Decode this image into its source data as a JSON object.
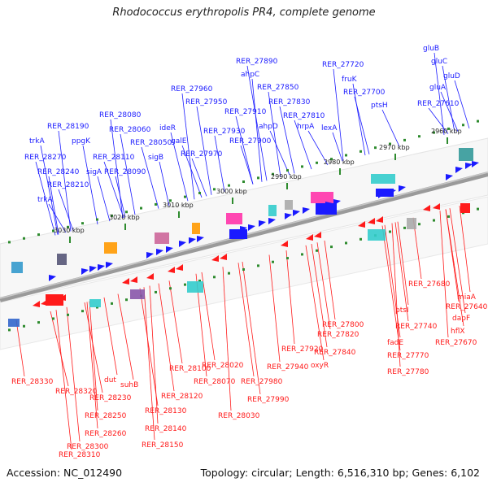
{
  "title": "Rhodococcus erythropolis PR4, complete genome",
  "footer": {
    "accession": "Accession: NC_012490",
    "topology": "Topology: circular; Length: 6,516,310 bp; Genes: 6,102"
  },
  "colors": {
    "forward": "#1a1aff",
    "reverse": "#ff1a1a",
    "backbone": "#777777",
    "scale": "#2e8b2e"
  },
  "scale_ticks": [
    "2960 kbp",
    "2970 kbp",
    "2980 kbp",
    "2990 kbp",
    "3000 kbp",
    "3010 kbp",
    "3020 kbp",
    "3030 kbp"
  ],
  "forward_labels": [
    "gluB",
    "gluC",
    "gluD",
    "gluA",
    "RER_27610",
    "RER_27720",
    "fruK",
    "RER_27700",
    "ptsH",
    "RER_27890",
    "ahpC",
    "RER_27850",
    "RER_27830",
    "RER_27810",
    "hrpA",
    "lexA",
    "RER_27960",
    "RER_27950",
    "RER_27910",
    "ahpD",
    "RER_27930",
    "RER_27900",
    "RER_27970",
    "ideR",
    "galE",
    "sigB",
    "RER_28080",
    "RER_28060",
    "RER_28050",
    "RER_28110",
    "RER_28090",
    "RER_28190",
    "ppgK",
    "trkA",
    "RER_28270",
    "RER_28240",
    "sigA",
    "RER_28210",
    "trkA"
  ],
  "reverse_labels": [
    "RER_27680",
    "miaA",
    "RER_27640",
    "dapF",
    "hflX",
    "RER_27670",
    "ptsI",
    "RER_27740",
    "fadE",
    "RER_27770",
    "RER_27780",
    "RER_27800",
    "RER_27820",
    "RER_27840",
    "oxyR",
    "RER_27920",
    "RER_27940",
    "RER_28020",
    "RER_27980",
    "RER_27990",
    "RER_28030",
    "RER_28070",
    "RER_28100",
    "RER_28120",
    "RER_28130",
    "RER_28140",
    "RER_28150",
    "dut",
    "suhB",
    "RER_28230",
    "RER_28250",
    "RER_28260",
    "RER_28300",
    "RER_28310",
    "RER_28320",
    "RER_28330"
  ]
}
